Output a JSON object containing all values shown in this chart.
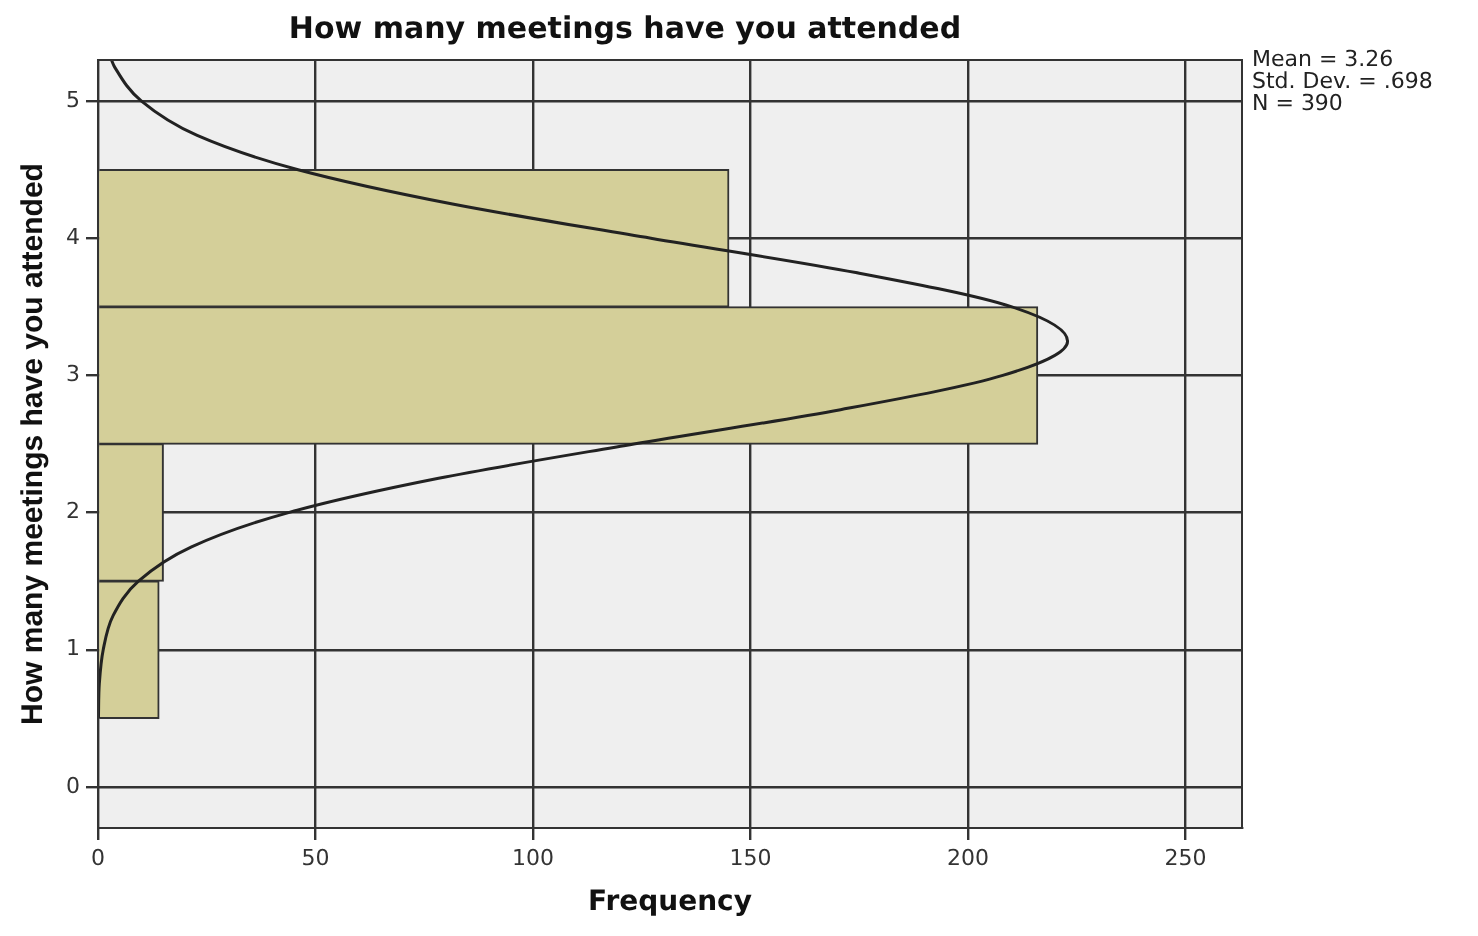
{
  "chart_data": {
    "type": "histogram",
    "orientation": "horizontal",
    "title": "How many meetings have you attended",
    "xlabel": "Frequency",
    "ylabel": "How many meetings have you attended",
    "bins": [
      0.5,
      1.5,
      2.5,
      3.5,
      4.5
    ],
    "values": [
      14,
      15,
      216,
      145
    ],
    "color": "#d4cf99",
    "series": [
      {
        "type": "line",
        "color": "#222222",
        "x": [
          0.5,
          0.75,
          1.0,
          1.25,
          1.5,
          1.75,
          2.0,
          2.25,
          2.5,
          2.75,
          3.0,
          3.25,
          3.5,
          3.75,
          4.0,
          4.25,
          4.5,
          4.75,
          5.0,
          5.25,
          5.3
        ],
        "values": [
          0.1,
          0.3,
          1.2,
          3.5,
          9.3,
          21.5,
          43.8,
          78.3,
          123.2,
          170.7,
          208.0,
          222.9,
          210.1,
          174.2,
          127.1,
          81.5,
          46.0,
          22.8,
          10.0,
          3.8,
          3.1
        ]
      }
    ],
    "xlim": [
      0,
      263
    ],
    "xticks": [
      0,
      50,
      100,
      150,
      200,
      250
    ],
    "ylim": [
      -0.3,
      5.3
    ],
    "yticks": [
      0,
      1,
      2,
      3,
      4,
      5
    ],
    "grid": true,
    "legend": false,
    "marker": "none",
    "annotations": [
      "Mean = 3.26",
      "Std. Dev. = .698",
      "N = 390"
    ]
  }
}
